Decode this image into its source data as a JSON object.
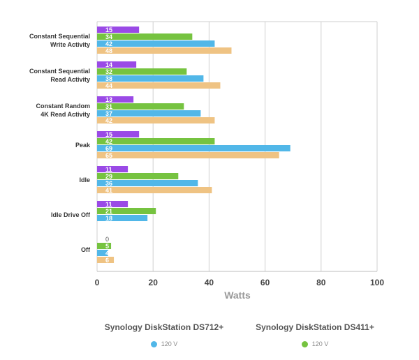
{
  "chart_data": {
    "type": "bar",
    "orientation": "horizontal",
    "title": "",
    "xlabel": "Watts",
    "ylabel": "",
    "xlim": [
      0,
      100
    ],
    "xticks": [
      0,
      20,
      40,
      60,
      80,
      100
    ],
    "grid": true,
    "categories": [
      [
        "Constant Sequential",
        "Write Activity"
      ],
      [
        "Constant Sequential",
        "Read Activity"
      ],
      [
        "Constant Random",
        "4K Read Activity"
      ],
      [
        "Peak"
      ],
      [
        "Idle"
      ],
      [
        "Idle Drive Off"
      ],
      [
        "Off"
      ]
    ],
    "series": [
      {
        "color": "#9a4ae6",
        "values": [
          15,
          14,
          13,
          15,
          11,
          11,
          0
        ]
      },
      {
        "color": "#76c340",
        "values": [
          34,
          32,
          31,
          42,
          29,
          21,
          5
        ]
      },
      {
        "color": "#51b7e8",
        "values": [
          42,
          38,
          37,
          69,
          36,
          18,
          4
        ]
      },
      {
        "color": "#efc383",
        "values": [
          48,
          44,
          42,
          65,
          41,
          null,
          6
        ]
      }
    ]
  },
  "legend": [
    {
      "title": "Synology DiskStation DS712+",
      "label": "120 V",
      "color": "#51b7e8"
    },
    {
      "title": "Synology DiskStation DS411+",
      "label": "120 V",
      "color": "#76c340"
    }
  ]
}
